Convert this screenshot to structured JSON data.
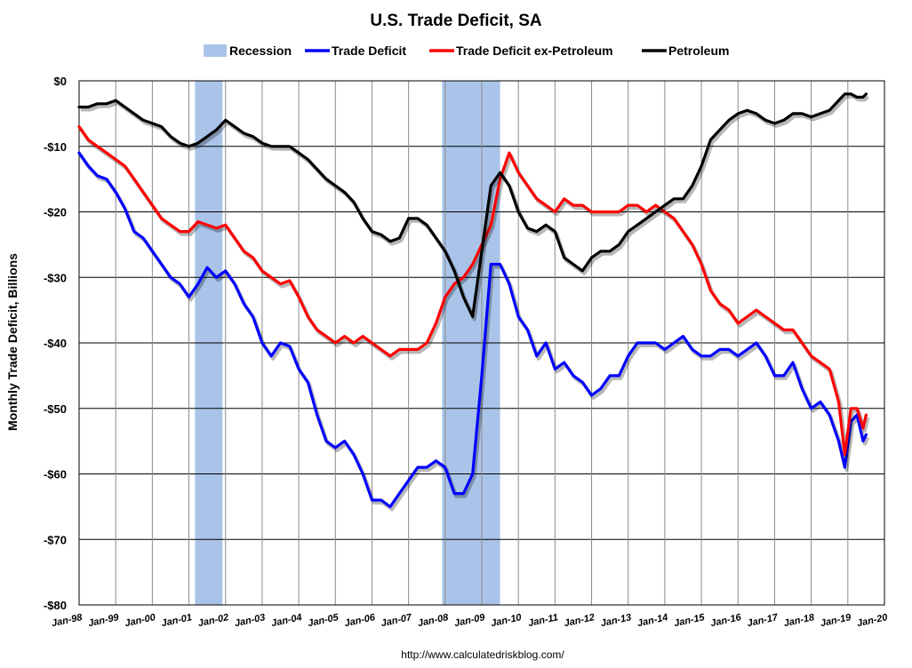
{
  "chart_data": {
    "type": "line",
    "title": "U.S. Trade Deficit, SA",
    "ylabel": "Monthly Trade Deficit, Billions",
    "xlabel": "",
    "source_text": "http://www.calculatedriskblog.com/",
    "y_unit_prefix": "$",
    "ylim": [
      -80,
      0
    ],
    "xlim": [
      "1998-01",
      "2020-01"
    ],
    "yticks": [
      {
        "value": 0,
        "label": "$0"
      },
      {
        "value": -10,
        "label": "-$10"
      },
      {
        "value": -20,
        "label": "-$20"
      },
      {
        "value": -30,
        "label": "-$30"
      },
      {
        "value": -40,
        "label": "-$40"
      },
      {
        "value": -50,
        "label": "-$50"
      },
      {
        "value": -60,
        "label": "-$60"
      },
      {
        "value": -70,
        "label": "-$70"
      },
      {
        "value": -80,
        "label": "-$80"
      }
    ],
    "xticks": [
      "Jan-98",
      "Jan-99",
      "Jan-00",
      "Jan-01",
      "Jan-02",
      "Jan-03",
      "Jan-04",
      "Jan-05",
      "Jan-06",
      "Jan-07",
      "Jan-08",
      "Jan-09",
      "Jan-10",
      "Jan-11",
      "Jan-12",
      "Jan-13",
      "Jan-14",
      "Jan-15",
      "Jan-16",
      "Jan-17",
      "Jan-18",
      "Jan-19",
      "Jan-20"
    ],
    "grid": true,
    "legend_position": "top",
    "recessions": [
      {
        "start": "2001-03",
        "end": "2001-11"
      },
      {
        "start": "2007-12",
        "end": "2009-06"
      }
    ],
    "legend": [
      {
        "name": "Recession",
        "kind": "area",
        "color": "#a9c4e8"
      },
      {
        "name": "Trade Deficit",
        "kind": "line",
        "color": "#0000ff"
      },
      {
        "name": "Trade Deficit ex-Petroleum",
        "kind": "line",
        "color": "#ff0000"
      },
      {
        "name": "Petroleum",
        "kind": "line",
        "color": "#000000"
      }
    ],
    "series": [
      {
        "name": "Trade Deficit",
        "color": "#0000ff",
        "points": [
          [
            "1998-01",
            -11
          ],
          [
            "1998-04",
            -13
          ],
          [
            "1998-07",
            -14.5
          ],
          [
            "1998-10",
            -15
          ],
          [
            "1999-01",
            -17
          ],
          [
            "1999-04",
            -19.5
          ],
          [
            "1999-07",
            -23
          ],
          [
            "1999-10",
            -24
          ],
          [
            "2000-01",
            -26
          ],
          [
            "2000-04",
            -28
          ],
          [
            "2000-07",
            -30
          ],
          [
            "2000-10",
            -31
          ],
          [
            "2001-01",
            -33
          ],
          [
            "2001-04",
            -31
          ],
          [
            "2001-07",
            -28.5
          ],
          [
            "2001-10",
            -30
          ],
          [
            "2002-01",
            -29
          ],
          [
            "2002-04",
            -31
          ],
          [
            "2002-07",
            -34
          ],
          [
            "2002-10",
            -36
          ],
          [
            "2003-01",
            -40
          ],
          [
            "2003-04",
            -42
          ],
          [
            "2003-07",
            -40
          ],
          [
            "2003-10",
            -40.5
          ],
          [
            "2004-01",
            -44
          ],
          [
            "2004-04",
            -46
          ],
          [
            "2004-07",
            -51
          ],
          [
            "2004-10",
            -55
          ],
          [
            "2005-01",
            -56
          ],
          [
            "2005-04",
            -55
          ],
          [
            "2005-07",
            -57
          ],
          [
            "2005-10",
            -60
          ],
          [
            "2006-01",
            -64
          ],
          [
            "2006-04",
            -64
          ],
          [
            "2006-07",
            -65
          ],
          [
            "2006-10",
            -63
          ],
          [
            "2007-01",
            -61
          ],
          [
            "2007-04",
            -59
          ],
          [
            "2007-07",
            -59
          ],
          [
            "2007-10",
            -58
          ],
          [
            "2008-01",
            -59
          ],
          [
            "2008-04",
            -63
          ],
          [
            "2008-07",
            -63
          ],
          [
            "2008-10",
            -60
          ],
          [
            "2009-01",
            -45
          ],
          [
            "2009-04",
            -28
          ],
          [
            "2009-07",
            -28
          ],
          [
            "2009-10",
            -31
          ],
          [
            "2010-01",
            -36
          ],
          [
            "2010-04",
            -38
          ],
          [
            "2010-07",
            -42
          ],
          [
            "2010-10",
            -40
          ],
          [
            "2011-01",
            -44
          ],
          [
            "2011-04",
            -43
          ],
          [
            "2011-07",
            -45
          ],
          [
            "2011-10",
            -46
          ],
          [
            "2012-01",
            -48
          ],
          [
            "2012-04",
            -47
          ],
          [
            "2012-07",
            -45
          ],
          [
            "2012-10",
            -45
          ],
          [
            "2013-01",
            -42
          ],
          [
            "2013-04",
            -40
          ],
          [
            "2013-07",
            -40
          ],
          [
            "2013-10",
            -40
          ],
          [
            "2014-01",
            -41
          ],
          [
            "2014-04",
            -40
          ],
          [
            "2014-07",
            -39
          ],
          [
            "2014-10",
            -41
          ],
          [
            "2015-01",
            -42
          ],
          [
            "2015-04",
            -42
          ],
          [
            "2015-07",
            -41
          ],
          [
            "2015-10",
            -41
          ],
          [
            "2016-01",
            -42
          ],
          [
            "2016-04",
            -41
          ],
          [
            "2016-07",
            -40
          ],
          [
            "2016-10",
            -42
          ],
          [
            "2017-01",
            -45
          ],
          [
            "2017-04",
            -45
          ],
          [
            "2017-07",
            -43
          ],
          [
            "2017-10",
            -47
          ],
          [
            "2018-01",
            -50
          ],
          [
            "2018-04",
            -49
          ],
          [
            "2018-07",
            -51
          ],
          [
            "2018-10",
            -55
          ],
          [
            "2018-12",
            -59
          ],
          [
            "2019-02",
            -52
          ],
          [
            "2019-04",
            -51
          ],
          [
            "2019-06",
            -55
          ],
          [
            "2019-07",
            -54
          ]
        ]
      },
      {
        "name": "Trade Deficit ex-Petroleum",
        "color": "#ff0000",
        "points": [
          [
            "1998-01",
            -7
          ],
          [
            "1998-04",
            -9
          ],
          [
            "1998-07",
            -10
          ],
          [
            "1998-10",
            -11
          ],
          [
            "1999-01",
            -12
          ],
          [
            "1999-04",
            -13
          ],
          [
            "1999-07",
            -15
          ],
          [
            "1999-10",
            -17
          ],
          [
            "2000-01",
            -19
          ],
          [
            "2000-04",
            -21
          ],
          [
            "2000-07",
            -22
          ],
          [
            "2000-10",
            -23
          ],
          [
            "2001-01",
            -23
          ],
          [
            "2001-04",
            -21.5
          ],
          [
            "2001-07",
            -22
          ],
          [
            "2001-10",
            -22.5
          ],
          [
            "2002-01",
            -22
          ],
          [
            "2002-04",
            -24
          ],
          [
            "2002-07",
            -26
          ],
          [
            "2002-10",
            -27
          ],
          [
            "2003-01",
            -29
          ],
          [
            "2003-04",
            -30
          ],
          [
            "2003-07",
            -31
          ],
          [
            "2003-10",
            -30.5
          ],
          [
            "2004-01",
            -33
          ],
          [
            "2004-04",
            -36
          ],
          [
            "2004-07",
            -38
          ],
          [
            "2004-10",
            -39
          ],
          [
            "2005-01",
            -40
          ],
          [
            "2005-04",
            -39
          ],
          [
            "2005-07",
            -40
          ],
          [
            "2005-10",
            -39
          ],
          [
            "2006-01",
            -40
          ],
          [
            "2006-04",
            -41
          ],
          [
            "2006-07",
            -42
          ],
          [
            "2006-10",
            -41
          ],
          [
            "2007-01",
            -41
          ],
          [
            "2007-04",
            -41
          ],
          [
            "2007-07",
            -40
          ],
          [
            "2007-10",
            -37
          ],
          [
            "2008-01",
            -33
          ],
          [
            "2008-04",
            -31
          ],
          [
            "2008-07",
            -30
          ],
          [
            "2008-10",
            -28
          ],
          [
            "2009-01",
            -25
          ],
          [
            "2009-04",
            -22
          ],
          [
            "2009-07",
            -15
          ],
          [
            "2009-10",
            -11
          ],
          [
            "2010-01",
            -14
          ],
          [
            "2010-04",
            -16
          ],
          [
            "2010-07",
            -18
          ],
          [
            "2010-10",
            -19
          ],
          [
            "2011-01",
            -20
          ],
          [
            "2011-04",
            -18
          ],
          [
            "2011-07",
            -19
          ],
          [
            "2011-10",
            -19
          ],
          [
            "2012-01",
            -20
          ],
          [
            "2012-04",
            -20
          ],
          [
            "2012-07",
            -20
          ],
          [
            "2012-10",
            -20
          ],
          [
            "2013-01",
            -19
          ],
          [
            "2013-04",
            -19
          ],
          [
            "2013-07",
            -20
          ],
          [
            "2013-10",
            -19
          ],
          [
            "2014-01",
            -20
          ],
          [
            "2014-04",
            -21
          ],
          [
            "2014-07",
            -23
          ],
          [
            "2014-10",
            -25
          ],
          [
            "2015-01",
            -28
          ],
          [
            "2015-04",
            -32
          ],
          [
            "2015-07",
            -34
          ],
          [
            "2015-10",
            -35
          ],
          [
            "2016-01",
            -37
          ],
          [
            "2016-04",
            -36
          ],
          [
            "2016-07",
            -35
          ],
          [
            "2016-10",
            -36
          ],
          [
            "2017-01",
            -37
          ],
          [
            "2017-04",
            -38
          ],
          [
            "2017-07",
            -38
          ],
          [
            "2017-10",
            -40
          ],
          [
            "2018-01",
            -42
          ],
          [
            "2018-04",
            -43
          ],
          [
            "2018-07",
            -44
          ],
          [
            "2018-10",
            -49
          ],
          [
            "2018-12",
            -57
          ],
          [
            "2019-02",
            -50
          ],
          [
            "2019-04",
            -50
          ],
          [
            "2019-06",
            -53
          ],
          [
            "2019-07",
            -51
          ]
        ]
      },
      {
        "name": "Petroleum",
        "color": "#000000",
        "points": [
          [
            "1998-01",
            -4
          ],
          [
            "1998-04",
            -4
          ],
          [
            "1998-07",
            -3.5
          ],
          [
            "1998-10",
            -3.5
          ],
          [
            "1999-01",
            -3
          ],
          [
            "1999-04",
            -4
          ],
          [
            "1999-07",
            -5
          ],
          [
            "1999-10",
            -6
          ],
          [
            "2000-01",
            -6.5
          ],
          [
            "2000-04",
            -7
          ],
          [
            "2000-07",
            -8.5
          ],
          [
            "2000-10",
            -9.5
          ],
          [
            "2001-01",
            -10
          ],
          [
            "2001-04",
            -9.5
          ],
          [
            "2001-07",
            -8.5
          ],
          [
            "2001-10",
            -7.5
          ],
          [
            "2002-01",
            -6
          ],
          [
            "2002-04",
            -7
          ],
          [
            "2002-07",
            -8
          ],
          [
            "2002-10",
            -8.5
          ],
          [
            "2003-01",
            -9.5
          ],
          [
            "2003-04",
            -10
          ],
          [
            "2003-07",
            -10
          ],
          [
            "2003-10",
            -10
          ],
          [
            "2004-01",
            -11
          ],
          [
            "2004-04",
            -12
          ],
          [
            "2004-07",
            -13.5
          ],
          [
            "2004-10",
            -15
          ],
          [
            "2005-01",
            -16
          ],
          [
            "2005-04",
            -17
          ],
          [
            "2005-07",
            -18.5
          ],
          [
            "2005-10",
            -21
          ],
          [
            "2006-01",
            -23
          ],
          [
            "2006-04",
            -23.5
          ],
          [
            "2006-07",
            -24.5
          ],
          [
            "2006-10",
            -24
          ],
          [
            "2007-01",
            -21
          ],
          [
            "2007-04",
            -21
          ],
          [
            "2007-07",
            -22
          ],
          [
            "2007-10",
            -24
          ],
          [
            "2008-01",
            -26
          ],
          [
            "2008-04",
            -29
          ],
          [
            "2008-07",
            -33
          ],
          [
            "2008-10",
            -36
          ],
          [
            "2009-01",
            -26
          ],
          [
            "2009-04",
            -16
          ],
          [
            "2009-07",
            -14
          ],
          [
            "2009-10",
            -16
          ],
          [
            "2010-01",
            -20
          ],
          [
            "2010-04",
            -22.5
          ],
          [
            "2010-07",
            -23
          ],
          [
            "2010-10",
            -22
          ],
          [
            "2011-01",
            -23
          ],
          [
            "2011-04",
            -27
          ],
          [
            "2011-07",
            -28
          ],
          [
            "2011-10",
            -29
          ],
          [
            "2012-01",
            -27
          ],
          [
            "2012-04",
            -26
          ],
          [
            "2012-07",
            -26
          ],
          [
            "2012-10",
            -25
          ],
          [
            "2013-01",
            -23
          ],
          [
            "2013-04",
            -22
          ],
          [
            "2013-07",
            -21
          ],
          [
            "2013-10",
            -20
          ],
          [
            "2014-01",
            -19
          ],
          [
            "2014-04",
            -18
          ],
          [
            "2014-07",
            -18
          ],
          [
            "2014-10",
            -16
          ],
          [
            "2015-01",
            -13
          ],
          [
            "2015-04",
            -9
          ],
          [
            "2015-07",
            -7.5
          ],
          [
            "2015-10",
            -6
          ],
          [
            "2016-01",
            -5
          ],
          [
            "2016-04",
            -4.5
          ],
          [
            "2016-07",
            -5
          ],
          [
            "2016-10",
            -6
          ],
          [
            "2017-01",
            -6.5
          ],
          [
            "2017-04",
            -6
          ],
          [
            "2017-07",
            -5
          ],
          [
            "2017-10",
            -5
          ],
          [
            "2018-01",
            -5.5
          ],
          [
            "2018-04",
            -5
          ],
          [
            "2018-07",
            -4.5
          ],
          [
            "2018-10",
            -3
          ],
          [
            "2018-12",
            -2
          ],
          [
            "2019-02",
            -2
          ],
          [
            "2019-04",
            -2.5
          ],
          [
            "2019-06",
            -2.5
          ],
          [
            "2019-07",
            -2
          ]
        ]
      }
    ]
  }
}
